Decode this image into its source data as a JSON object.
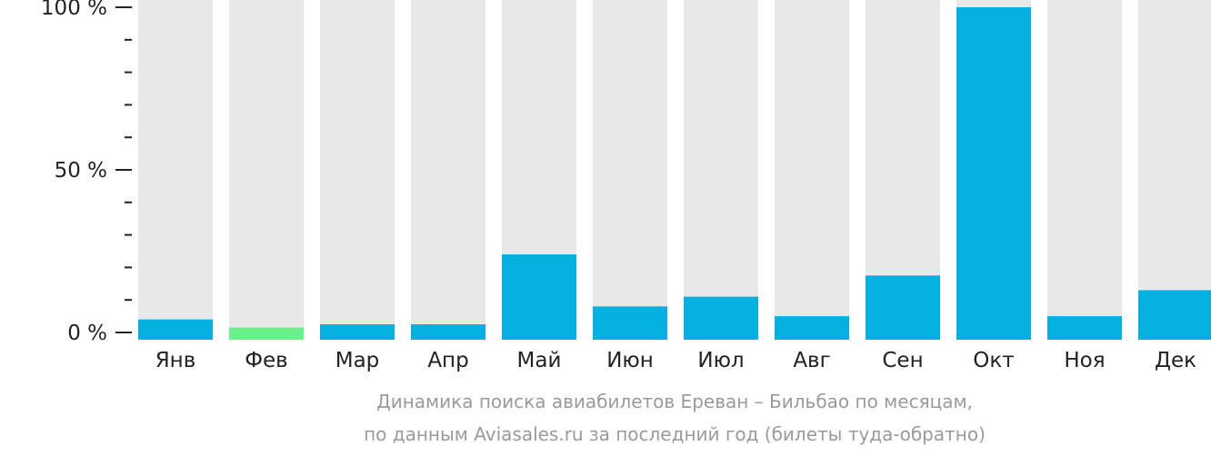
{
  "chart_data": {
    "type": "bar",
    "categories": [
      "Янв",
      "Фев",
      "Мар",
      "Апр",
      "Май",
      "Июн",
      "Июл",
      "Авг",
      "Сен",
      "Окт",
      "Ноя",
      "Дек"
    ],
    "values": [
      4,
      1.5,
      2.5,
      2.5,
      24,
      8,
      11,
      5,
      17.5,
      100,
      5,
      13
    ],
    "highlight_index": 1,
    "ylim": [
      0,
      100
    ],
    "yticks": [
      {
        "value": 0,
        "label": "0 %"
      },
      {
        "value": 50,
        "label": "50 %"
      },
      {
        "value": 100,
        "label": "100 %"
      }
    ],
    "minor_tick_step": 10,
    "grid": false,
    "colors": {
      "bar": "#03b0de",
      "highlight": "#6bef8a",
      "background_bar": "#e8e8e8",
      "text": "#222222",
      "caption": "#9a9a9a"
    }
  },
  "caption": {
    "line1": "Динамика поиска авиабилетов Ереван – Бильбао по месяцам,",
    "line2": "по данным Aviasales.ru за последний год (билеты туда-обратно)"
  }
}
